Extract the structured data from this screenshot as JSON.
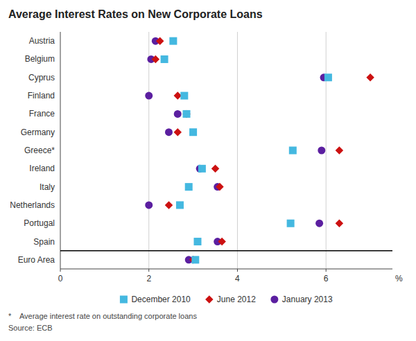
{
  "chart_data": {
    "type": "dot",
    "orientation": "horizontal",
    "title": "Average Interest Rates on New Corporate Loans",
    "categories": [
      "Austria",
      "Belgium",
      "Cyprus",
      "Finland",
      "France",
      "Germany",
      "Greece*",
      "Ireland",
      "Italy",
      "Netherlands",
      "Portugal",
      "Spain",
      "Euro Area"
    ],
    "series": [
      {
        "name": "December 2010",
        "color": "#44B8E0",
        "marker": "square",
        "values": [
          2.55,
          2.35,
          6.05,
          2.8,
          2.85,
          3.0,
          5.25,
          3.2,
          2.9,
          2.7,
          5.2,
          3.1,
          3.05
        ]
      },
      {
        "name": "June 2012",
        "color": "#CC1111",
        "marker": "diamond",
        "values": [
          2.25,
          2.15,
          7.0,
          2.65,
          2.85,
          2.65,
          6.3,
          3.5,
          3.6,
          2.45,
          6.3,
          3.65,
          3.0
        ]
      },
      {
        "name": "January 2013",
        "color": "#5B1FA0",
        "marker": "circle",
        "values": [
          2.15,
          2.05,
          5.95,
          2.0,
          2.65,
          2.45,
          5.9,
          3.15,
          3.55,
          2.0,
          5.85,
          3.55,
          2.9
        ]
      }
    ],
    "x_label": "%",
    "xlim": [
      0,
      7.5
    ],
    "xticks": [
      0,
      2,
      4,
      6
    ],
    "grid": true,
    "legend": "bottom",
    "annotations": [
      "*    Average interest rate on outstanding corporate loans",
      "Source: ECB"
    ]
  }
}
